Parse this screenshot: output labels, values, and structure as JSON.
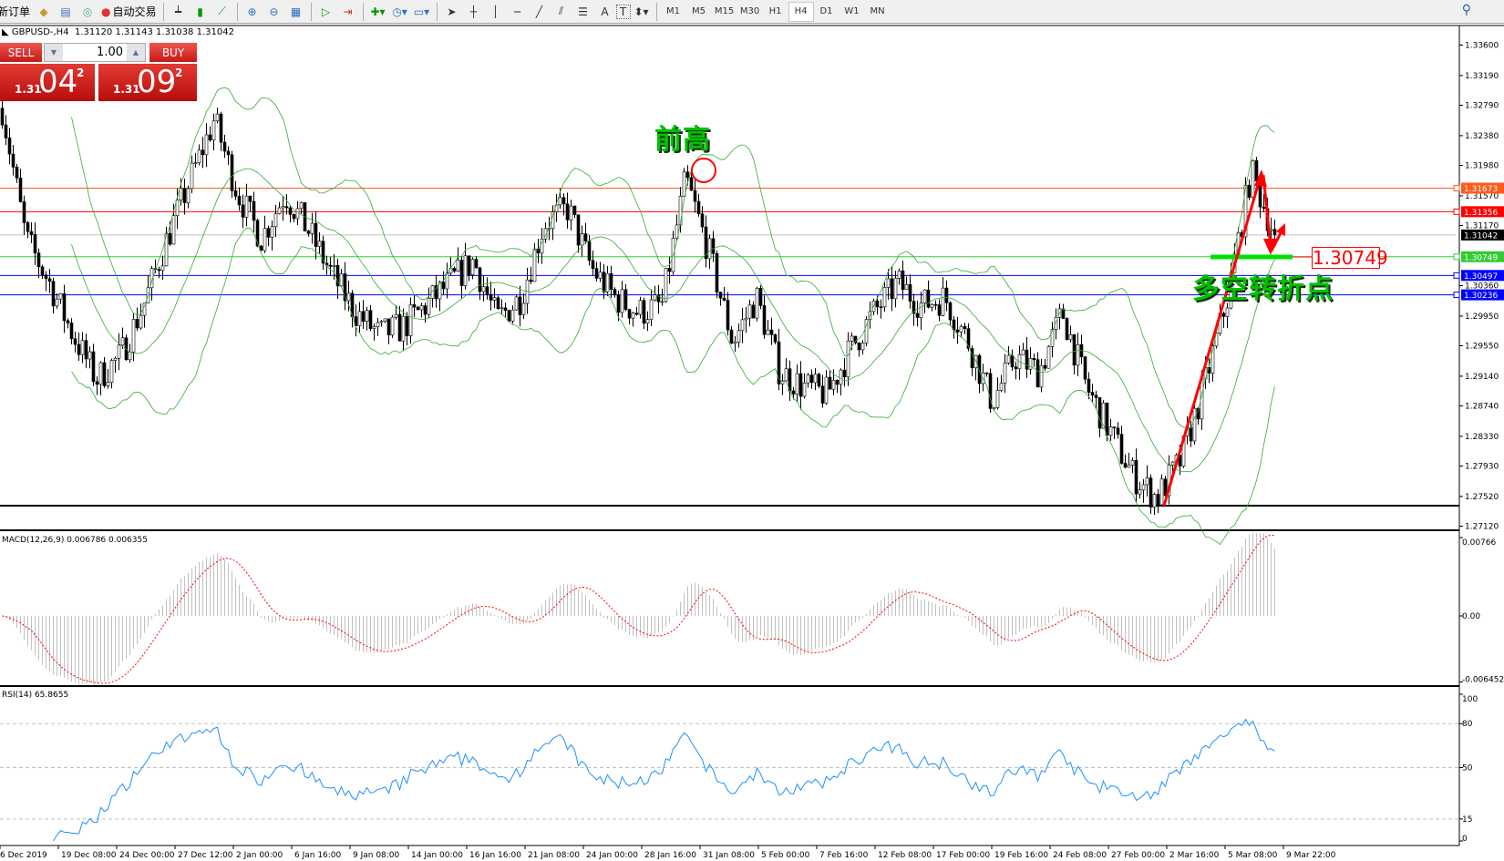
{
  "toolbar": {
    "new_order": "新订单",
    "auto_trading": "自动交易",
    "icons": [
      "market-watch-icon",
      "data-window-icon",
      "signals-icon",
      "bar-chart-icon",
      "candlestick-icon",
      "line-chart-icon",
      "zoom-in-icon",
      "zoom-out-icon",
      "tile-windows-icon",
      "autoscroll-icon",
      "chart-shift-icon",
      "indicators-icon",
      "periods-icon",
      "templates-icon",
      "cursor-icon",
      "crosshair-icon",
      "vertical-line-icon",
      "horizontal-line-icon",
      "trendline-icon",
      "equidistant-channel-icon",
      "fibonacci-icon",
      "text-icon",
      "text-label-icon",
      "arrows-icon"
    ],
    "text_tool": "A",
    "label_tool": "T",
    "timeframes": [
      "M1",
      "M5",
      "M15",
      "M30",
      "H1",
      "H4",
      "D1",
      "W1",
      "MN"
    ],
    "active_timeframe": "H4"
  },
  "chart_info": {
    "symbol": "GBPUSD-,H4",
    "open": "1.31120",
    "high": "1.31143",
    "low": "1.31038",
    "close": "1.31042"
  },
  "trade_panel": {
    "sell": "SELL",
    "buy": "BUY",
    "lot": "1.00",
    "bid": {
      "big": "1.31",
      "main": "04",
      "small": "2"
    },
    "ask": {
      "big": "1.31",
      "main": "09",
      "small": "2"
    }
  },
  "annotations": {
    "prev_high": "前高",
    "turning_point": "多空转折点",
    "level_label": "1.30749",
    "color_text": "#00c000",
    "color_arrow": "#ff0000"
  },
  "chart_data": {
    "type": "candlestick",
    "price_ticks": [
      "1.33600",
      "1.33190",
      "1.32790",
      "1.32380",
      "1.31980",
      "1.31570",
      "1.31170",
      "1.30360",
      "1.29950",
      "1.29550",
      "1.29140",
      "1.28740",
      "1.28330",
      "1.27930",
      "1.27520",
      "1.27120"
    ],
    "ylim": [
      1.2712,
      1.336
    ],
    "levels": [
      {
        "price": "1.31673",
        "color": "#ff5a1e"
      },
      {
        "price": "1.31356",
        "color": "#ff0000"
      },
      {
        "price": "1.31042",
        "color": "#000000",
        "line": "#c0c0c0"
      },
      {
        "price": "1.30749",
        "color": "#33cc33"
      },
      {
        "price": "1.30497",
        "color": "#0000ff"
      },
      {
        "price": "1.30236",
        "color": "#0000ff"
      }
    ],
    "time_ticks": [
      "6 Dec 2019",
      "19 Dec 08:00",
      "24 Dec 00:00",
      "27 Dec 12:00",
      "2 Jan 00:00",
      "6 Jan 16:00",
      "9 Jan 08:00",
      "14 Jan 00:00",
      "16 Jan 16:00",
      "21 Jan 08:00",
      "24 Jan 00:00",
      "28 Jan 16:00",
      "31 Jan 08:00",
      "5 Feb 00:00",
      "7 Feb 16:00",
      "12 Feb 08:00",
      "17 Feb 00:00",
      "19 Feb 16:00",
      "24 Feb 08:00",
      "27 Feb 00:00",
      "2 Mar 16:00",
      "5 Mar 08:00",
      "9 Mar 22:00"
    ],
    "price_path": [
      1.3275,
      1.31,
      1.304,
      1.297,
      1.291,
      1.294,
      1.301,
      1.31,
      1.318,
      1.326,
      1.316,
      1.31,
      1.316,
      1.311,
      1.305,
      1.3,
      1.297,
      1.298,
      1.301,
      1.304,
      1.307,
      1.299,
      1.302,
      1.312,
      1.314,
      1.306,
      1.302,
      1.3,
      1.301,
      1.318,
      1.308,
      1.296,
      1.302,
      1.292,
      1.29,
      1.289,
      1.295,
      1.3,
      1.304,
      1.301,
      1.302,
      1.296,
      1.288,
      1.294,
      1.292,
      1.3,
      1.29,
      1.284,
      1.278,
      1.275,
      1.28,
      1.29,
      1.302,
      1.319,
      1.3104
    ],
    "indicators": {
      "bollinger": {
        "color": "#33aa33"
      },
      "macd": {
        "label": "MACD(12,26,9) 0.006786 0.006355",
        "ticks": [
          "0.00766",
          "0.00",
          "-0.006452"
        ],
        "hist_color": "#c0c0c0",
        "signal_color": "#ff0000"
      },
      "rsi": {
        "label": "RSI(14) 65.8655",
        "value": 65.8655,
        "ticks": [
          "100",
          "80",
          "50",
          "15",
          "0"
        ],
        "color": "#1e90ff"
      }
    }
  }
}
